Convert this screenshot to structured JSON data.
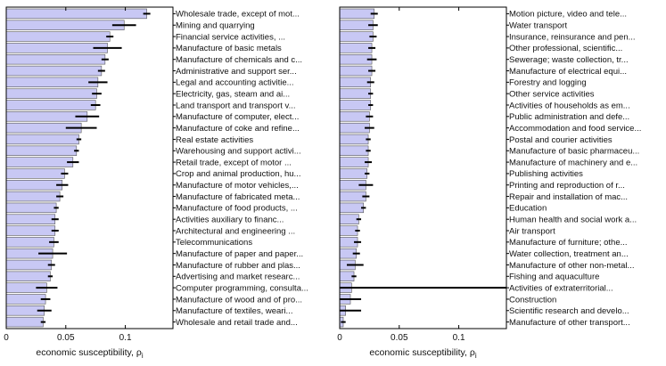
{
  "chart_data": [
    {
      "type": "bar",
      "orientation": "horizontal",
      "xlabel": "economic susceptibility, ρ",
      "xlabel_subscript": "i",
      "xlim": [
        0,
        0.14
      ],
      "xticks": [
        "0",
        "0.05",
        "0.1"
      ],
      "bar_color": "#c8c8f4",
      "categories": [
        "Wholesale trade, except of mot...",
        "Mining and quarrying",
        "Financial service activities, ...",
        "Manufacture of basic metals",
        "Manufacture of chemicals and c...",
        "Administrative and support ser...",
        "Legal and accounting activitie...",
        "Electricity, gas, steam and ai...",
        "Land transport and transport v...",
        "Manufacture of computer, elect...",
        "Manufacture of coke and refine...",
        "Real estate activities",
        "Warehousing and support activi...",
        "Retail trade, except of motor ...",
        "Crop and animal production, hu...",
        "Manufacture of motor vehicles,...",
        "Manufacture of fabricated meta...",
        "Manufacture of food products, ...",
        "Activities auxiliary to financ...",
        "Architectural and engineering ...",
        "Telecommunications",
        "Manufacture of paper and paper...",
        "Manufacture of rubber and plas...",
        "Advertising and market researc...",
        "Computer programming, consulta...",
        "Manufacture of wood and of pro...",
        "Manufacture of textiles, weari...",
        "Wholesale and retail trade and..."
      ],
      "values": [
        0.118,
        0.099,
        0.087,
        0.085,
        0.083,
        0.08,
        0.077,
        0.076,
        0.075,
        0.068,
        0.063,
        0.061,
        0.059,
        0.056,
        0.049,
        0.047,
        0.045,
        0.042,
        0.041,
        0.041,
        0.04,
        0.039,
        0.038,
        0.037,
        0.034,
        0.033,
        0.032,
        0.031
      ],
      "errors": [
        0.003,
        0.01,
        0.003,
        0.012,
        0.003,
        0.003,
        0.008,
        0.004,
        0.004,
        0.01,
        0.013,
        0.002,
        0.002,
        0.005,
        0.003,
        0.005,
        0.003,
        0.002,
        0.003,
        0.003,
        0.004,
        0.012,
        0.003,
        0.002,
        0.009,
        0.004,
        0.006,
        0.002
      ]
    },
    {
      "type": "bar",
      "orientation": "horizontal",
      "xlabel": "economic susceptibility, ρ",
      "xlabel_subscript": "i",
      "xlim": [
        0,
        0.14
      ],
      "xticks": [
        "0",
        "0.05",
        "0.1"
      ],
      "bar_color": "#c8c8f4",
      "categories": [
        "Motion picture, video and tele...",
        "Water transport",
        "Insurance, reinsurance and pen...",
        "Other professional, scientific...",
        "Sewerage; waste collection, tr...",
        "Manufacture of electrical equi...",
        "Forestry and logging",
        "Other service activities",
        "Activities of households as em...",
        "Public administration and defe...",
        "Accommodation and food service...",
        "Postal and courier activities",
        "Manufacture of basic pharmaceu...",
        "Manufacture of machinery and e...",
        "Publishing activities",
        "Printing and reproduction of r...",
        "Repair and installation of mac...",
        "Education",
        "Human health and social work a...",
        "Air transport",
        "Manufacture of furniture; othe...",
        "Water collection, treatment an...",
        "Manufacture of other non-metal...",
        "Fishing and aquaculture",
        "Activities of extraterritorial...",
        "Construction",
        "Scientific research and develo...",
        "Manufacture of other transport..."
      ],
      "values": [
        0.029,
        0.028,
        0.028,
        0.027,
        0.027,
        0.027,
        0.026,
        0.026,
        0.026,
        0.025,
        0.025,
        0.024,
        0.024,
        0.024,
        0.023,
        0.022,
        0.022,
        0.02,
        0.016,
        0.015,
        0.015,
        0.014,
        0.013,
        0.012,
        0.01,
        0.009,
        0.005,
        0.003
      ],
      "errors": [
        0.003,
        0.004,
        0.003,
        0.003,
        0.004,
        0.003,
        0.003,
        0.002,
        0.002,
        0.003,
        0.004,
        0.002,
        0.002,
        0.003,
        0.002,
        0.006,
        0.003,
        0.002,
        0.002,
        0.002,
        0.003,
        0.003,
        0.007,
        0.002,
        0.14,
        0.009,
        0.013,
        0.002
      ]
    }
  ]
}
